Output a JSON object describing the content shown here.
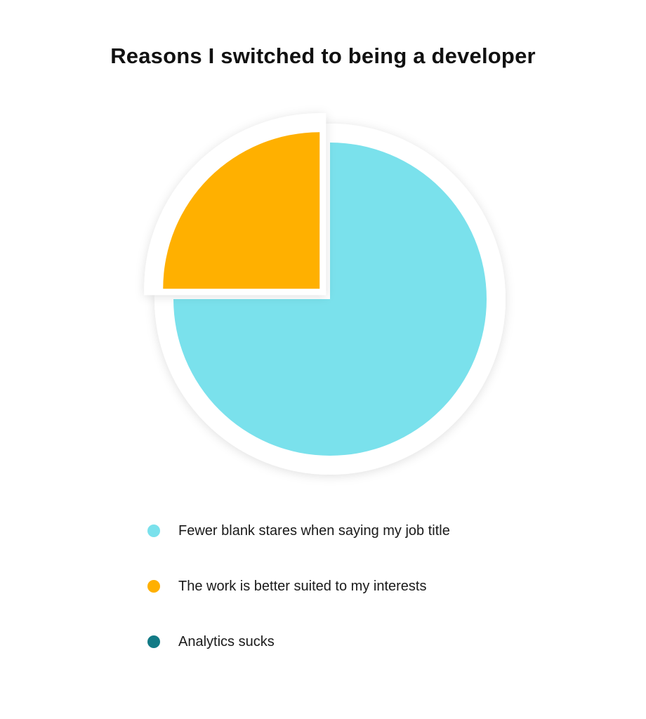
{
  "chart_data": {
    "type": "pie",
    "title": "Reasons I switched to being a developer",
    "categories": [
      "Fewer blank stares when saying my job title",
      "The work is better suited to my interests",
      "Analytics sucks"
    ],
    "values": [
      75,
      25,
      0
    ],
    "colors": [
      "#7ae1ec",
      "#ffb000",
      "#127a85"
    ],
    "exploded": [
      false,
      true,
      false
    ],
    "start_angle": "top, clockwise",
    "legend_position": "bottom"
  }
}
